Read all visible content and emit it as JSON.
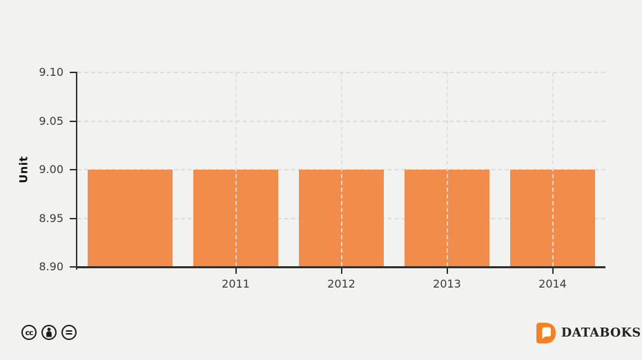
{
  "page": {
    "background_color": "#f2f2f1"
  },
  "chart_data": {
    "type": "bar",
    "categories": [
      "",
      "2011",
      "2012",
      "2013",
      "2014"
    ],
    "values": [
      9.0,
      9.0,
      9.0,
      9.0,
      9.0
    ],
    "ylabel": "Unit",
    "xlabel": "",
    "ylim": [
      8.9,
      9.1
    ],
    "yticks": [
      "9.10",
      "9.05",
      "9.00",
      "8.95",
      "8.90"
    ],
    "grid": "dashed, horizontal at every y tick and vertical at labeled x ticks",
    "legend_position": "none",
    "bar_color": "#f28c4a",
    "grid_color": "#dcdcda",
    "axis_color": "#2f2f2f",
    "tick_label_color": "#3a3a3a"
  },
  "footer": {
    "license_icons": [
      "cc",
      "by",
      "nd"
    ],
    "brand_text": "DATABOKS",
    "brand_logo_color": "#f5821f",
    "brand_text_color": "#242021",
    "icon_color": "#1b1b1b"
  }
}
